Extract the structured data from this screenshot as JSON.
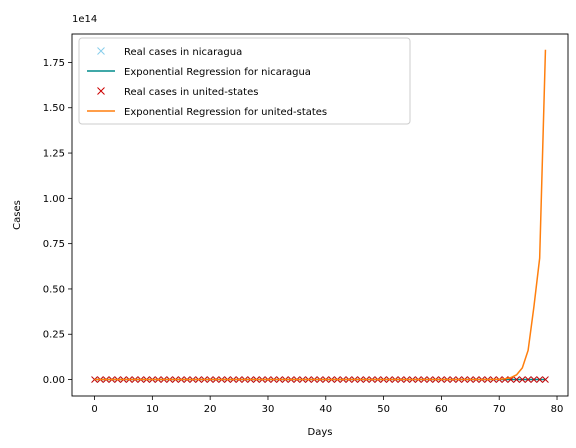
{
  "chart_data": {
    "type": "line",
    "title": "",
    "xlabel": "Days",
    "ylabel": "Cases",
    "y_offset_text": "1e14",
    "xlim": [
      -3.9,
      81.9
    ],
    "ylim": [
      -0.0908,
      1.907
    ],
    "x_ticks": [
      0,
      10,
      20,
      30,
      40,
      50,
      60,
      70,
      80
    ],
    "y_ticks": [
      0.0,
      0.25,
      0.5,
      0.75,
      1.0,
      1.25,
      1.5,
      1.75
    ],
    "grid": false,
    "legend_position": "top-left",
    "series": [
      {
        "name": "Real cases in nicaragua",
        "style": "marker-x",
        "color": "#87ceeb",
        "x": [
          0,
          78
        ],
        "y": [
          0,
          0
        ]
      },
      {
        "name": "Exponential Regression for nicaragua",
        "style": "line",
        "color": "#008b8b",
        "x": [
          0,
          78
        ],
        "y": [
          0,
          0
        ]
      },
      {
        "name": "Real cases in united-states",
        "style": "marker-x",
        "color": "#cc0000",
        "x": [
          0,
          78
        ],
        "y": [
          0,
          0
        ]
      },
      {
        "name": "Exponential Regression for united-states",
        "style": "line",
        "color": "#ff7f0e",
        "x": [
          0,
          67,
          68,
          69,
          70,
          71,
          72,
          73,
          74,
          75,
          76,
          77,
          78
        ],
        "y": [
          0,
          0.0001,
          0.0003,
          0.0007,
          0.0017,
          0.0042,
          0.0104,
          0.026,
          0.0647,
          0.161,
          0.401,
          0.67,
          1.82
        ]
      }
    ]
  }
}
